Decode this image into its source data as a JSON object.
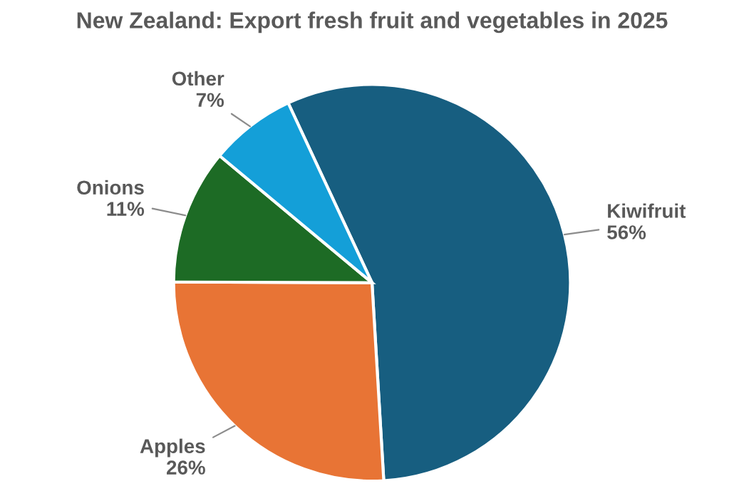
{
  "chart_data": {
    "type": "pie",
    "title": "New Zealand: Export fresh fruit and vegetables in 2025",
    "categories": [
      "Kiwifruit",
      "Apples",
      "Onions",
      "Other"
    ],
    "values": [
      56,
      26,
      11,
      7
    ],
    "value_labels": [
      "56%",
      "26%",
      "11%",
      "7%"
    ],
    "colors": [
      "#175e80",
      "#e87435",
      "#1d6b25",
      "#149fd8"
    ],
    "legend": false
  }
}
